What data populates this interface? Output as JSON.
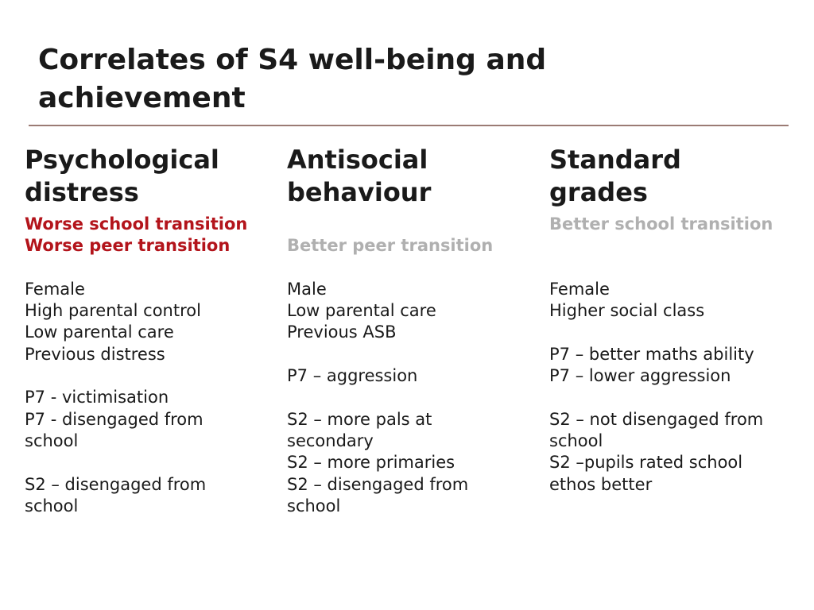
{
  "title": {
    "line1": "Correlates of S4 well-being and",
    "line2": "achievement"
  },
  "colors": {
    "highlight_red": "#b3141b",
    "highlight_grey": "#b0b0b0",
    "rule": "#9b7b74"
  },
  "columns": [
    {
      "heading_line1": "Psychological",
      "heading_line2": "distress",
      "lines": [
        {
          "text": "Worse school transition",
          "style": "red"
        },
        {
          "text": "Worse peer transition",
          "style": "red"
        },
        {
          "text": "",
          "style": "plain"
        },
        {
          "text": "Female",
          "style": "plain"
        },
        {
          "text": "High parental control",
          "style": "plain"
        },
        {
          "text": "Low parental care",
          "style": "plain"
        },
        {
          "text": "Previous distress",
          "style": "plain"
        },
        {
          "text": "",
          "style": "plain"
        },
        {
          "text": "P7 - victimisation",
          "style": "plain"
        },
        {
          "text": "P7 - disengaged from",
          "style": "plain"
        },
        {
          "text": "school",
          "style": "plain"
        },
        {
          "text": "",
          "style": "plain"
        },
        {
          "text": "S2 – disengaged from",
          "style": "plain"
        },
        {
          "text": "school",
          "style": "plain"
        }
      ]
    },
    {
      "heading_line1": "Antisocial",
      "heading_line2": "behaviour",
      "lines": [
        {
          "text": "",
          "style": "plain"
        },
        {
          "text": "Better peer transition",
          "style": "grey"
        },
        {
          "text": "",
          "style": "plain"
        },
        {
          "text": "Male",
          "style": "plain"
        },
        {
          "text": "Low parental care",
          "style": "plain"
        },
        {
          "text": "Previous ASB",
          "style": "plain"
        },
        {
          "text": "",
          "style": "plain"
        },
        {
          "text": "P7 – aggression",
          "style": "plain"
        },
        {
          "text": "",
          "style": "plain"
        },
        {
          "text": "S2 – more pals at",
          "style": "plain"
        },
        {
          "text": "secondary",
          "style": "plain"
        },
        {
          "text": "S2 – more primaries",
          "style": "plain"
        },
        {
          "text": "S2 – disengaged from",
          "style": "plain"
        },
        {
          "text": "school",
          "style": "plain"
        }
      ]
    },
    {
      "heading_line1": "Standard",
      "heading_line2": "grades",
      "lines": [
        {
          "text": "Better school transition",
          "style": "grey"
        },
        {
          "text": "",
          "style": "plain"
        },
        {
          "text": "",
          "style": "plain"
        },
        {
          "text": "Female",
          "style": "plain"
        },
        {
          "text": "Higher social class",
          "style": "plain"
        },
        {
          "text": "",
          "style": "plain"
        },
        {
          "text": "P7 – better maths ability",
          "style": "plain"
        },
        {
          "text": "P7 – lower aggression",
          "style": "plain"
        },
        {
          "text": "",
          "style": "plain"
        },
        {
          "text": "S2 – not disengaged from",
          "style": "plain"
        },
        {
          "text": "school",
          "style": "plain"
        },
        {
          "text": "S2 –pupils rated school",
          "style": "plain"
        },
        {
          "text": "ethos better",
          "style": "plain"
        },
        {
          "text": "",
          "style": "plain"
        }
      ]
    }
  ]
}
